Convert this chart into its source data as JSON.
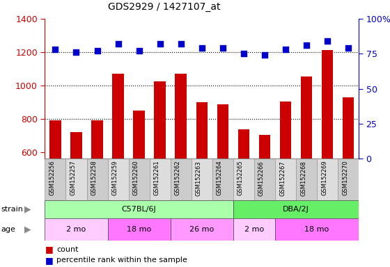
{
  "title": "GDS2929 / 1427107_at",
  "samples": [
    "GSM152256",
    "GSM152257",
    "GSM152258",
    "GSM152259",
    "GSM152260",
    "GSM152261",
    "GSM152262",
    "GSM152263",
    "GSM152264",
    "GSM152265",
    "GSM152266",
    "GSM152267",
    "GSM152268",
    "GSM152269",
    "GSM152270"
  ],
  "counts": [
    790,
    720,
    790,
    1070,
    850,
    1025,
    1070,
    900,
    885,
    735,
    705,
    905,
    1055,
    1210,
    930
  ],
  "percentiles": [
    78,
    76,
    77,
    82,
    77,
    82,
    82,
    79,
    79,
    75,
    74,
    78,
    81,
    84,
    79
  ],
  "ylim_left": [
    560,
    1400
  ],
  "ylim_right": [
    0,
    100
  ],
  "yticks_left": [
    600,
    800,
    1000,
    1200,
    1400
  ],
  "yticks_right": [
    0,
    25,
    50,
    75,
    100
  ],
  "bar_color": "#CC0000",
  "dot_color": "#0000CC",
  "strain_groups": [
    {
      "label": "C57BL/6J",
      "start": 0,
      "end": 9,
      "color": "#AAFFAA"
    },
    {
      "label": "DBA/2J",
      "start": 9,
      "end": 15,
      "color": "#66EE66"
    }
  ],
  "age_groups": [
    {
      "label": "2 mo",
      "start": 0,
      "end": 3,
      "color": "#FFCCFF"
    },
    {
      "label": "18 mo",
      "start": 3,
      "end": 6,
      "color": "#FF77FF"
    },
    {
      "label": "26 mo",
      "start": 6,
      "end": 9,
      "color": "#FF99FF"
    },
    {
      "label": "2 mo",
      "start": 9,
      "end": 11,
      "color": "#FFCCFF"
    },
    {
      "label": "18 mo",
      "start": 11,
      "end": 15,
      "color": "#FF77FF"
    }
  ],
  "bg_color": "#FFFFFF",
  "axis_color_left": "#CC0000",
  "axis_color_right": "#0000CC",
  "grid_dotted_vals": [
    800,
    1000,
    1200
  ],
  "xtick_bg_odd": "#CCCCCC",
  "xtick_bg_even": "#DDDDDD"
}
